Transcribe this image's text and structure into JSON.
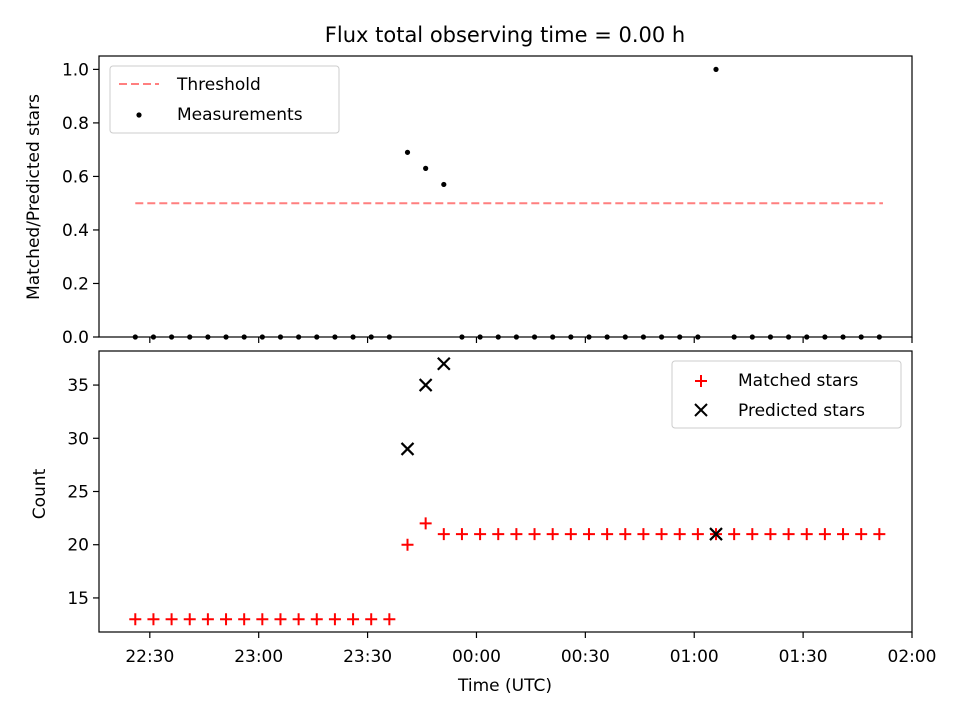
{
  "chart_data": [
    {
      "type": "scatter",
      "title": "Flux total observing time = 0.00 h",
      "xlabel": "",
      "ylabel": "Matched/Predicted stars",
      "ylim": [
        0,
        1.05
      ],
      "yticks": [
        "0.0",
        "0.2",
        "0.4",
        "0.6",
        "0.8",
        "1.0"
      ],
      "ytick_values": [
        0,
        0.2,
        0.4,
        0.6,
        0.8,
        1.0
      ],
      "x_tick_labels_shown": false,
      "legend_position": "top-left",
      "threshold": {
        "name": "Threshold",
        "value": 0.5,
        "x_range": [
          "22:26",
          "01:52"
        ],
        "color": "#ff7f7f",
        "style": "dashed"
      },
      "series": [
        {
          "name": "Measurements",
          "color": "#000000",
          "marker": "dot",
          "x": [
            "22:26",
            "22:31",
            "22:36",
            "22:41",
            "22:46",
            "22:51",
            "22:56",
            "23:01",
            "23:06",
            "23:11",
            "23:16",
            "23:21",
            "23:26",
            "23:31",
            "23:36",
            "23:41",
            "23:46",
            "23:51",
            "23:56",
            "00:01",
            "00:06",
            "00:11",
            "00:16",
            "00:21",
            "00:26",
            "00:31",
            "00:36",
            "00:41",
            "00:46",
            "00:51",
            "00:56",
            "01:01",
            "01:06",
            "01:11",
            "01:16",
            "01:21",
            "01:26",
            "01:31",
            "01:36",
            "01:41",
            "01:46",
            "01:51"
          ],
          "y": [
            0,
            0,
            0,
            0,
            0,
            0,
            0,
            0,
            0,
            0,
            0,
            0,
            0,
            0,
            0,
            0.69,
            0.63,
            0.57,
            0,
            0,
            0,
            0,
            0,
            0,
            0,
            0,
            0,
            0,
            0,
            0,
            0,
            0,
            1.0,
            0,
            0,
            0,
            0,
            0,
            0,
            0,
            0,
            0
          ]
        }
      ]
    },
    {
      "type": "scatter",
      "title": "",
      "xlabel": "Time (UTC)",
      "ylabel": "Count",
      "ylim": [
        11.8,
        38.2
      ],
      "xlim": [
        "22:16",
        "02:00"
      ],
      "yticks": [
        "15",
        "20",
        "25",
        "30",
        "35"
      ],
      "ytick_values": [
        15,
        20,
        25,
        30,
        35
      ],
      "xticks": [
        "22:30",
        "23:00",
        "23:30",
        "00:00",
        "00:30",
        "01:00",
        "01:30",
        "02:00"
      ],
      "legend_position": "top-right",
      "series": [
        {
          "name": "Matched stars",
          "color": "#ff0000",
          "marker": "plus",
          "x": [
            "22:26",
            "22:31",
            "22:36",
            "22:41",
            "22:46",
            "22:51",
            "22:56",
            "23:01",
            "23:06",
            "23:11",
            "23:16",
            "23:21",
            "23:26",
            "23:31",
            "23:36",
            "23:41",
            "23:46",
            "23:51",
            "23:56",
            "00:01",
            "00:06",
            "00:11",
            "00:16",
            "00:21",
            "00:26",
            "00:31",
            "00:36",
            "00:41",
            "00:46",
            "00:51",
            "00:56",
            "01:01",
            "01:06",
            "01:11",
            "01:16",
            "01:21",
            "01:26",
            "01:31",
            "01:36",
            "01:41",
            "01:46",
            "01:51"
          ],
          "y": [
            13,
            13,
            13,
            13,
            13,
            13,
            13,
            13,
            13,
            13,
            13,
            13,
            13,
            13,
            13,
            20,
            22,
            21,
            21,
            21,
            21,
            21,
            21,
            21,
            21,
            21,
            21,
            21,
            21,
            21,
            21,
            21,
            21,
            21,
            21,
            21,
            21,
            21,
            21,
            21,
            21,
            21
          ]
        },
        {
          "name": "Predicted stars",
          "color": "#000000",
          "marker": "x",
          "x": [
            "23:41",
            "23:46",
            "23:51",
            "01:06"
          ],
          "y": [
            29,
            35,
            37,
            21
          ]
        }
      ]
    }
  ]
}
